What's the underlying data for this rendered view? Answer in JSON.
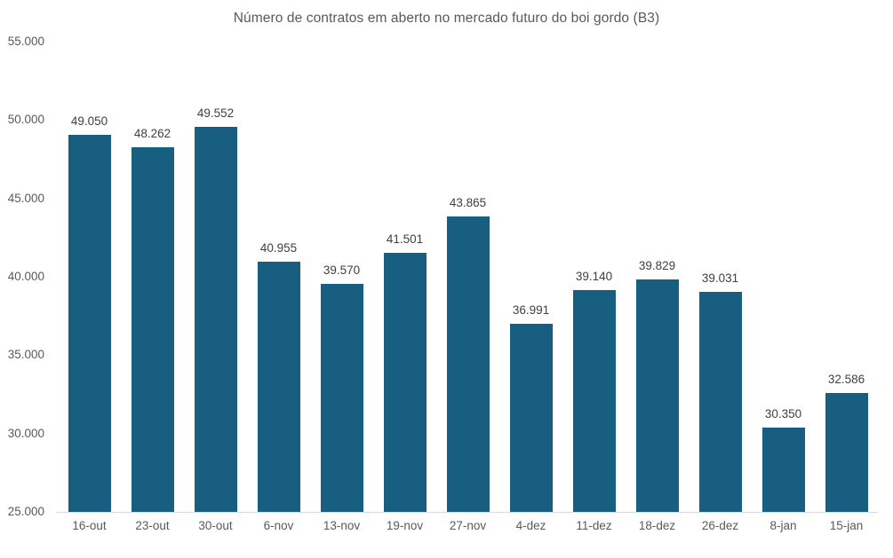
{
  "chart_data": {
    "type": "bar",
    "title": "Número de contratos em aberto no mercado futuro do boi gordo (B3)",
    "categories": [
      "16-out",
      "23-out",
      "30-out",
      "6-nov",
      "13-nov",
      "19-nov",
      "27-nov",
      "4-dez",
      "11-dez",
      "18-dez",
      "26-dez",
      "8-jan",
      "15-jan"
    ],
    "values": [
      49050,
      48262,
      49552,
      40955,
      39570,
      41501,
      43865,
      36991,
      39140,
      39829,
      39031,
      30350,
      32586
    ],
    "value_labels": [
      "49.050",
      "48.262",
      "49.552",
      "40.955",
      "39.570",
      "41.501",
      "43.865",
      "36.991",
      "39.140",
      "39.829",
      "39.031",
      "30.350",
      "32.586"
    ],
    "xlabel": "",
    "ylabel": "",
    "ylim": [
      25000,
      55000
    ],
    "y_ticks": [
      {
        "value": 25000,
        "label": "25.000"
      },
      {
        "value": 30000,
        "label": "30.000"
      },
      {
        "value": 35000,
        "label": "35.000"
      },
      {
        "value": 40000,
        "label": "40.000"
      },
      {
        "value": 45000,
        "label": "45.000"
      },
      {
        "value": 50000,
        "label": "50.000"
      },
      {
        "value": 55000,
        "label": "55.000"
      }
    ],
    "grid": false,
    "legend": false,
    "bar_color": "#175E80",
    "title_color": "#595959",
    "axis_text_color": "#595959",
    "value_label_color": "#404040",
    "baseline_color": "#d9d9d9"
  }
}
